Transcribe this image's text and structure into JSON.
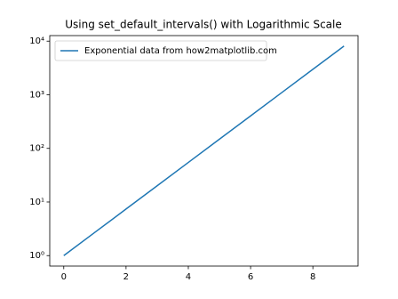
{
  "chart_data": {
    "type": "line",
    "title": "Using set_default_intervals() with Logarithmic Scale",
    "x": [
      0,
      1,
      2,
      3,
      4,
      5,
      6,
      7,
      8,
      9
    ],
    "series": [
      {
        "name": "Exponential data from how2matplotlib.com",
        "color": "#1f77b4",
        "values": [
          1,
          2.718,
          7.389,
          20.09,
          54.6,
          148.4,
          403.4,
          1096.6,
          2981,
          8103
        ]
      }
    ],
    "xlim": [
      -0.45,
      9.45
    ],
    "xticks": [
      0,
      2,
      4,
      6,
      8
    ],
    "ylim": [
      0.638,
      12687
    ],
    "y_scale": "log",
    "yticks": [
      {
        "value": 1,
        "label": "10⁰"
      },
      {
        "value": 10,
        "label": "10¹"
      },
      {
        "value": 100,
        "label": "10²"
      },
      {
        "value": 1000,
        "label": "10³"
      },
      {
        "value": 10000,
        "label": "10⁴"
      }
    ],
    "legend": "upper left",
    "grid": false
  }
}
